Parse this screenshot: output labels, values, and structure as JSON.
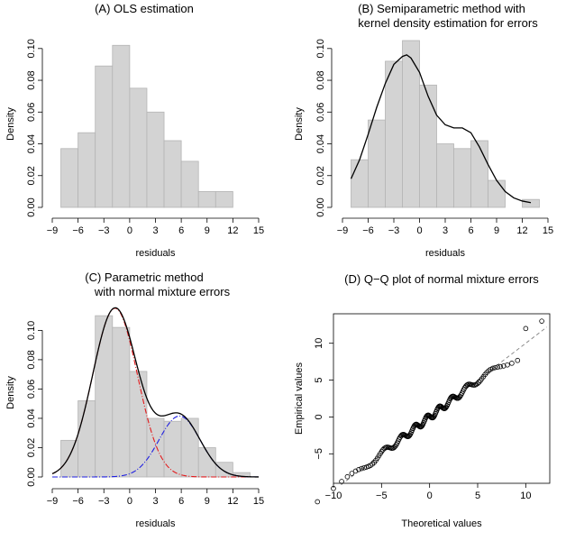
{
  "chart_data": [
    {
      "type": "bar",
      "title": "(A) OLS estimation",
      "xlabel": "residuals",
      "ylabel": "Density",
      "xlim": [
        -9,
        15
      ],
      "ylim": [
        0,
        0.105
      ],
      "xticks": [
        -9,
        -6,
        -3,
        0,
        3,
        6,
        9,
        12,
        15
      ],
      "xtick_labels": [
        "−9",
        "−6",
        "−3",
        "0",
        "3",
        "6",
        "9",
        "12",
        "15"
      ],
      "yticks": [
        0,
        0.02,
        0.04,
        0.06,
        0.08,
        0.1
      ],
      "ytick_labels": [
        "0.00",
        "0.02",
        "0.04",
        "0.06",
        "0.08",
        "0.10"
      ],
      "bins": [
        {
          "x0": -8,
          "x1": -6,
          "density": 0.037
        },
        {
          "x0": -6,
          "x1": -4,
          "density": 0.047
        },
        {
          "x0": -4,
          "x1": -2,
          "density": 0.089
        },
        {
          "x0": -2,
          "x1": 0,
          "density": 0.102
        },
        {
          "x0": 0,
          "x1": 2,
          "density": 0.075
        },
        {
          "x0": 2,
          "x1": 4,
          "density": 0.06
        },
        {
          "x0": 4,
          "x1": 6,
          "density": 0.042
        },
        {
          "x0": 6,
          "x1": 8,
          "density": 0.029
        },
        {
          "x0": 8,
          "x1": 10,
          "density": 0.01
        },
        {
          "x0": 10,
          "x1": 12,
          "density": 0.01
        }
      ]
    },
    {
      "type": "bar",
      "title": "(B) Semiparametric method with",
      "title2": "kernel density estimation for errors",
      "xlabel": "residuals",
      "ylabel": "Density",
      "xlim": [
        -9,
        15
      ],
      "ylim": [
        0,
        0.105
      ],
      "xticks": [
        -9,
        -6,
        -3,
        0,
        3,
        6,
        9,
        12,
        15
      ],
      "xtick_labels": [
        "−9",
        "−6",
        "−3",
        "0",
        "3",
        "6",
        "9",
        "12",
        "15"
      ],
      "yticks": [
        0,
        0.02,
        0.04,
        0.06,
        0.08,
        0.1
      ],
      "ytick_labels": [
        "0.00",
        "0.02",
        "0.04",
        "0.06",
        "0.08",
        "0.10"
      ],
      "bins": [
        {
          "x0": -8,
          "x1": -6,
          "density": 0.03
        },
        {
          "x0": -6,
          "x1": -4,
          "density": 0.055
        },
        {
          "x0": -4,
          "x1": -2,
          "density": 0.092
        },
        {
          "x0": -2,
          "x1": 0,
          "density": 0.105
        },
        {
          "x0": 0,
          "x1": 2,
          "density": 0.077
        },
        {
          "x0": 2,
          "x1": 4,
          "density": 0.04
        },
        {
          "x0": 4,
          "x1": 6,
          "density": 0.037
        },
        {
          "x0": 6,
          "x1": 8,
          "density": 0.042
        },
        {
          "x0": 8,
          "x1": 10,
          "density": 0.017
        },
        {
          "x0": 10,
          "x1": 12,
          "density": 0.0
        },
        {
          "x0": 12,
          "x1": 14,
          "density": 0.005
        }
      ],
      "kde_curve": {
        "x": [
          -8,
          -7,
          -6,
          -5,
          -4,
          -3,
          -2,
          -1.5,
          -1,
          0,
          1,
          2,
          3,
          4,
          5,
          6,
          7,
          8,
          9,
          10,
          11,
          12,
          13
        ],
        "y": [
          0.018,
          0.03,
          0.046,
          0.063,
          0.078,
          0.09,
          0.095,
          0.096,
          0.094,
          0.085,
          0.07,
          0.058,
          0.052,
          0.05,
          0.05,
          0.047,
          0.038,
          0.027,
          0.017,
          0.01,
          0.006,
          0.004,
          0.003
        ]
      }
    },
    {
      "type": "bar",
      "title": "(C) Parametric method",
      "title2": "with normal mixture errors",
      "xlabel": "residuals",
      "ylabel": "Density",
      "xlim": [
        -9,
        15
      ],
      "ylim": [
        0,
        0.115
      ],
      "xticks": [
        -9,
        -6,
        -3,
        0,
        3,
        6,
        9,
        12,
        15
      ],
      "xtick_labels": [
        "−9",
        "−6",
        "−3",
        "0",
        "3",
        "6",
        "9",
        "12",
        "15"
      ],
      "yticks": [
        0,
        0.02,
        0.04,
        0.06,
        0.08,
        0.1
      ],
      "ytick_labels": [
        "0.00",
        "0.02",
        "0.04",
        "0.06",
        "0.08",
        "0.10"
      ],
      "bins": [
        {
          "x0": -8,
          "x1": -6,
          "density": 0.025
        },
        {
          "x0": -6,
          "x1": -4,
          "density": 0.052
        },
        {
          "x0": -4,
          "x1": -2,
          "density": 0.11
        },
        {
          "x0": -2,
          "x1": 0,
          "density": 0.102
        },
        {
          "x0": 0,
          "x1": 2,
          "density": 0.072
        },
        {
          "x0": 2,
          "x1": 4,
          "density": 0.04
        },
        {
          "x0": 4,
          "x1": 6,
          "density": 0.038
        },
        {
          "x0": 6,
          "x1": 8,
          "density": 0.04
        },
        {
          "x0": 8,
          "x1": 10,
          "density": 0.02
        },
        {
          "x0": 10,
          "x1": 12,
          "density": 0.01
        },
        {
          "x0": 12,
          "x1": 14,
          "density": 0.003
        }
      ],
      "mixture": {
        "components": [
          {
            "weight": 0.75,
            "mean": -1.7,
            "sd": 2.6,
            "color": "#e31a1c"
          },
          {
            "weight": 0.25,
            "mean": 5.8,
            "sd": 2.4,
            "color": "#1f1fe0"
          }
        ],
        "total_color": "#000000",
        "x_range": [
          -9,
          15
        ]
      }
    },
    {
      "type": "scatter",
      "title": "(D) Q−Q plot of normal mixture errors",
      "xlabel": "Theoretical values",
      "ylabel": "Empirical values",
      "xlim": [
        -10,
        12.5
      ],
      "ylim": [
        -9,
        14
      ],
      "xticks": [
        -10,
        -5,
        0,
        5,
        10
      ],
      "xtick_labels": [
        "−10",
        "−5",
        "0",
        "5",
        "10"
      ],
      "yticks": [
        -5,
        0,
        5,
        10
      ],
      "ytick_labels": [
        "−5",
        "0",
        "5",
        "10"
      ],
      "reference_line": {
        "slope": 1,
        "intercept": 0,
        "style": "dashed",
        "color": "#808080"
      },
      "n_points": 150
    }
  ]
}
